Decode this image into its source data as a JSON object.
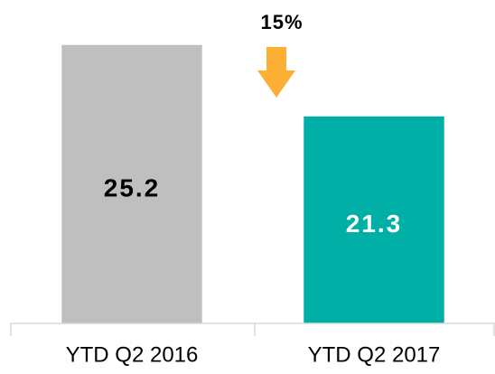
{
  "chart_data": {
    "type": "bar",
    "categories": [
      "YTD Q2 2016",
      "YTD Q2 2017"
    ],
    "values": [
      25.2,
      21.3
    ],
    "colors": [
      "#bfbfbf",
      "#00b0a6"
    ],
    "label_colors": [
      "#000000",
      "#ffffff"
    ],
    "ylim": [
      10,
      28
    ],
    "annotation": "15%"
  }
}
